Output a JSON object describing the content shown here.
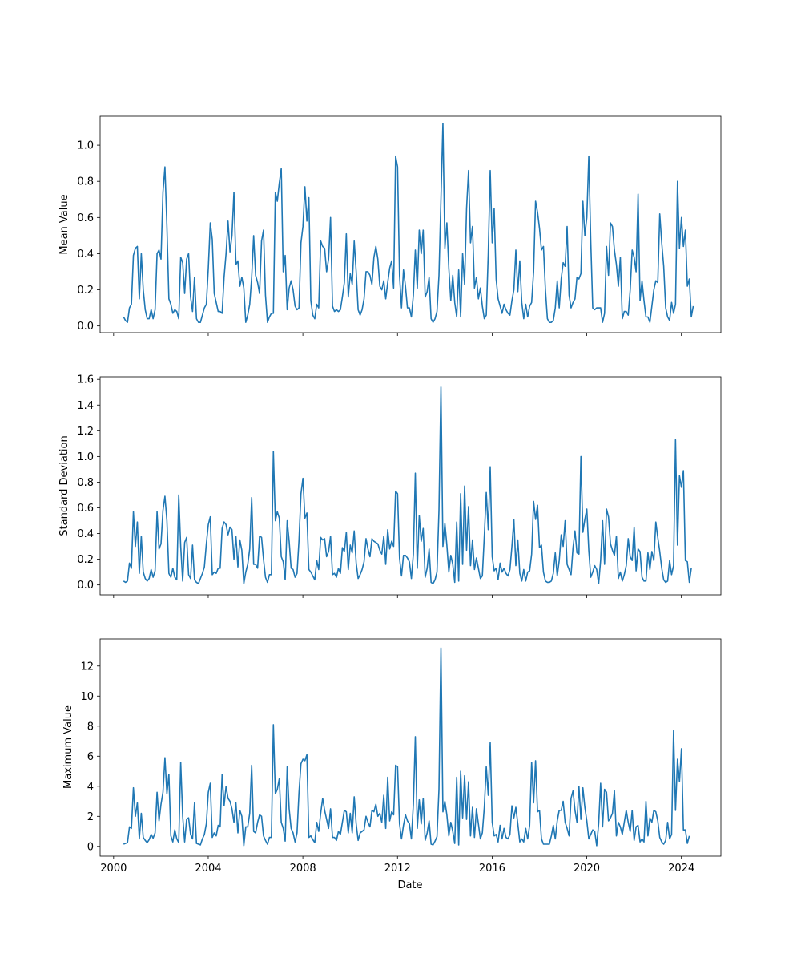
{
  "chart_data": {
    "type": "line",
    "shared_x": true,
    "xlabel": "Date",
    "x_tick_labels": [
      "2000",
      "2004",
      "2008",
      "2012",
      "2016",
      "2020",
      "2024"
    ],
    "x_ticks": [
      2000,
      2004,
      2008,
      2012,
      2016,
      2020,
      2024
    ],
    "xlim": [
      1999.43,
      2025.67
    ],
    "x_start": 2000.42,
    "x_step": 0.08333,
    "line_color": "#1f77b4",
    "panels": [
      {
        "ylabel": "Mean Value",
        "ylim": [
          -0.037,
          1.16
        ],
        "y_ticks": [
          0.0,
          0.2,
          0.4,
          0.6,
          0.8,
          1.0
        ],
        "y_tick_labels": [
          "0.0",
          "0.2",
          "0.4",
          "0.6",
          "0.8",
          "1.0"
        ],
        "values": [
          0.05,
          0.03,
          0.02,
          0.1,
          0.12,
          0.39,
          0.43,
          0.44,
          0.15,
          0.4,
          0.2,
          0.09,
          0.04,
          0.04,
          0.09,
          0.04,
          0.09,
          0.4,
          0.42,
          0.37,
          0.74,
          0.88,
          0.55,
          0.15,
          0.12,
          0.07,
          0.09,
          0.08,
          0.04,
          0.38,
          0.35,
          0.18,
          0.37,
          0.4,
          0.16,
          0.08,
          0.27,
          0.04,
          0.02,
          0.02,
          0.06,
          0.1,
          0.12,
          0.32,
          0.57,
          0.48,
          0.18,
          0.13,
          0.08,
          0.08,
          0.07,
          0.27,
          0.4,
          0.58,
          0.41,
          0.5,
          0.74,
          0.34,
          0.36,
          0.22,
          0.27,
          0.21,
          0.02,
          0.06,
          0.12,
          0.27,
          0.5,
          0.28,
          0.24,
          0.18,
          0.47,
          0.53,
          0.17,
          0.02,
          0.05,
          0.07,
          0.07,
          0.74,
          0.69,
          0.79,
          0.87,
          0.3,
          0.39,
          0.09,
          0.21,
          0.25,
          0.2,
          0.11,
          0.09,
          0.1,
          0.46,
          0.55,
          0.77,
          0.58,
          0.71,
          0.14,
          0.06,
          0.04,
          0.12,
          0.1,
          0.47,
          0.44,
          0.43,
          0.3,
          0.37,
          0.6,
          0.11,
          0.08,
          0.09,
          0.08,
          0.09,
          0.16,
          0.24,
          0.51,
          0.16,
          0.29,
          0.23,
          0.47,
          0.3,
          0.09,
          0.06,
          0.09,
          0.15,
          0.3,
          0.3,
          0.28,
          0.23,
          0.38,
          0.44,
          0.37,
          0.22,
          0.2,
          0.25,
          0.15,
          0.24,
          0.32,
          0.36,
          0.21,
          0.94,
          0.88,
          0.28,
          0.1,
          0.31,
          0.22,
          0.1,
          0.1,
          0.05,
          0.17,
          0.42,
          0.21,
          0.53,
          0.4,
          0.53,
          0.16,
          0.19,
          0.27,
          0.04,
          0.02,
          0.04,
          0.08,
          0.28,
          0.7,
          1.12,
          0.43,
          0.57,
          0.32,
          0.14,
          0.28,
          0.13,
          0.05,
          0.31,
          0.05,
          0.4,
          0.23,
          0.65,
          0.86,
          0.46,
          0.55,
          0.21,
          0.27,
          0.15,
          0.21,
          0.11,
          0.04,
          0.06,
          0.4,
          0.86,
          0.46,
          0.65,
          0.26,
          0.15,
          0.11,
          0.07,
          0.12,
          0.09,
          0.07,
          0.06,
          0.14,
          0.2,
          0.42,
          0.19,
          0.36,
          0.13,
          0.04,
          0.12,
          0.05,
          0.11,
          0.13,
          0.3,
          0.69,
          0.63,
          0.54,
          0.42,
          0.44,
          0.2,
          0.04,
          0.02,
          0.02,
          0.03,
          0.1,
          0.25,
          0.1,
          0.26,
          0.35,
          0.33,
          0.55,
          0.17,
          0.1,
          0.13,
          0.15,
          0.27,
          0.26,
          0.29,
          0.69,
          0.5,
          0.6,
          0.94,
          0.47,
          0.1,
          0.09,
          0.1,
          0.1,
          0.1,
          0.02,
          0.07,
          0.44,
          0.28,
          0.57,
          0.55,
          0.42,
          0.34,
          0.22,
          0.38,
          0.04,
          0.08,
          0.08,
          0.06,
          0.2,
          0.42,
          0.38,
          0.3,
          0.73,
          0.14,
          0.25,
          0.14,
          0.05,
          0.05,
          0.02,
          0.11,
          0.2,
          0.25,
          0.24,
          0.62,
          0.46,
          0.33,
          0.1,
          0.05,
          0.03,
          0.13,
          0.07,
          0.12,
          0.8,
          0.43,
          0.6,
          0.44,
          0.53,
          0.22,
          0.26,
          0.05,
          0.11
        ]
      },
      {
        "ylabel": "Standard Deviation",
        "ylim": [
          -0.077,
          1.62
        ],
        "y_ticks": [
          0.0,
          0.2,
          0.4,
          0.6,
          0.8,
          1.0,
          1.2,
          1.4,
          1.6
        ],
        "y_tick_labels": [
          "0.0",
          "0.2",
          "0.4",
          "0.6",
          "0.8",
          "1.0",
          "1.2",
          "1.4",
          "1.6"
        ],
        "values": [
          0.03,
          0.02,
          0.03,
          0.17,
          0.13,
          0.57,
          0.3,
          0.49,
          0.09,
          0.38,
          0.1,
          0.05,
          0.03,
          0.05,
          0.12,
          0.06,
          0.11,
          0.57,
          0.28,
          0.32,
          0.58,
          0.69,
          0.5,
          0.09,
          0.06,
          0.13,
          0.06,
          0.04,
          0.7,
          0.3,
          0.03,
          0.33,
          0.37,
          0.08,
          0.05,
          0.31,
          0.04,
          0.02,
          0.01,
          0.05,
          0.09,
          0.14,
          0.32,
          0.47,
          0.53,
          0.08,
          0.1,
          0.09,
          0.13,
          0.13,
          0.44,
          0.49,
          0.47,
          0.39,
          0.45,
          0.43,
          0.2,
          0.38,
          0.14,
          0.35,
          0.27,
          0.01,
          0.1,
          0.16,
          0.28,
          0.68,
          0.16,
          0.16,
          0.13,
          0.38,
          0.37,
          0.2,
          0.06,
          0.02,
          0.08,
          0.08,
          1.04,
          0.5,
          0.57,
          0.52,
          0.22,
          0.18,
          0.04,
          0.5,
          0.34,
          0.13,
          0.12,
          0.06,
          0.09,
          0.35,
          0.71,
          0.83,
          0.52,
          0.56,
          0.12,
          0.1,
          0.07,
          0.04,
          0.19,
          0.12,
          0.37,
          0.35,
          0.36,
          0.22,
          0.26,
          0.38,
          0.08,
          0.09,
          0.06,
          0.13,
          0.09,
          0.29,
          0.26,
          0.41,
          0.12,
          0.31,
          0.25,
          0.42,
          0.17,
          0.05,
          0.08,
          0.12,
          0.18,
          0.36,
          0.28,
          0.22,
          0.36,
          0.34,
          0.33,
          0.32,
          0.27,
          0.24,
          0.38,
          0.16,
          0.43,
          0.28,
          0.34,
          0.3,
          0.73,
          0.71,
          0.21,
          0.07,
          0.23,
          0.23,
          0.21,
          0.18,
          0.05,
          0.24,
          0.87,
          0.13,
          0.54,
          0.34,
          0.44,
          0.06,
          0.13,
          0.28,
          0.02,
          0.01,
          0.04,
          0.1,
          0.58,
          1.54,
          0.3,
          0.48,
          0.31,
          0.1,
          0.23,
          0.16,
          0.02,
          0.49,
          0.03,
          0.71,
          0.16,
          0.77,
          0.27,
          0.61,
          0.15,
          0.35,
          0.12,
          0.21,
          0.13,
          0.05,
          0.07,
          0.38,
          0.72,
          0.43,
          0.92,
          0.22,
          0.11,
          0.13,
          0.04,
          0.17,
          0.1,
          0.13,
          0.09,
          0.07,
          0.12,
          0.3,
          0.51,
          0.15,
          0.35,
          0.09,
          0.03,
          0.12,
          0.03,
          0.1,
          0.11,
          0.24,
          0.65,
          0.51,
          0.62,
          0.29,
          0.31,
          0.1,
          0.03,
          0.02,
          0.02,
          0.03,
          0.09,
          0.25,
          0.07,
          0.19,
          0.39,
          0.3,
          0.5,
          0.16,
          0.12,
          0.08,
          0.29,
          0.42,
          0.25,
          0.24,
          1.0,
          0.41,
          0.51,
          0.59,
          0.27,
          0.06,
          0.1,
          0.15,
          0.12,
          0.01,
          0.19,
          0.5,
          0.16,
          0.59,
          0.53,
          0.32,
          0.27,
          0.23,
          0.38,
          0.05,
          0.1,
          0.03,
          0.08,
          0.15,
          0.36,
          0.22,
          0.19,
          0.45,
          0.11,
          0.28,
          0.26,
          0.06,
          0.03,
          0.03,
          0.25,
          0.12,
          0.26,
          0.19,
          0.49,
          0.37,
          0.26,
          0.13,
          0.04,
          0.02,
          0.03,
          0.19,
          0.08,
          0.15,
          1.13,
          0.31,
          0.85,
          0.76,
          0.89,
          0.19,
          0.18,
          0.02,
          0.13
        ]
      },
      {
        "ylabel": "Maximum Value",
        "ylim": [
          -0.65,
          13.8
        ],
        "y_ticks": [
          0,
          2,
          4,
          6,
          8,
          10,
          12
        ],
        "y_tick_labels": [
          "0",
          "2",
          "4",
          "6",
          "8",
          "10",
          "12"
        ],
        "values": [
          0.15,
          0.2,
          0.25,
          1.3,
          1.2,
          3.9,
          2.0,
          2.9,
          0.5,
          2.2,
          0.6,
          0.4,
          0.25,
          0.45,
          0.8,
          0.55,
          0.9,
          3.6,
          1.7,
          2.8,
          3.6,
          5.9,
          3.5,
          4.8,
          0.7,
          0.3,
          1.1,
          0.5,
          0.25,
          5.6,
          2.0,
          0.3,
          1.8,
          1.9,
          0.8,
          0.5,
          2.9,
          0.2,
          0.15,
          0.1,
          0.5,
          0.8,
          1.5,
          3.6,
          4.2,
          0.6,
          0.9,
          0.7,
          1.4,
          1.3,
          4.8,
          2.7,
          4.0,
          3.2,
          3.0,
          2.5,
          1.6,
          2.9,
          0.9,
          2.4,
          2.0,
          0.05,
          1.3,
          1.3,
          2.2,
          5.4,
          1.0,
          0.9,
          1.6,
          2.1,
          2.0,
          0.7,
          0.4,
          0.15,
          0.6,
          0.6,
          8.1,
          3.5,
          3.8,
          4.5,
          1.6,
          1.2,
          0.35,
          5.3,
          2.5,
          1.2,
          0.9,
          0.3,
          0.9,
          3.6,
          5.5,
          5.8,
          5.7,
          6.1,
          0.6,
          0.7,
          0.45,
          0.25,
          1.6,
          1.0,
          2.2,
          3.2,
          2.4,
          1.8,
          1.2,
          2.5,
          0.6,
          0.6,
          0.4,
          1.0,
          0.8,
          1.6,
          2.4,
          2.3,
          0.9,
          2.2,
          0.9,
          3.3,
          1.5,
          0.4,
          0.9,
          1.0,
          1.1,
          2.0,
          1.6,
          1.3,
          2.4,
          2.3,
          2.8,
          2.0,
          2.2,
          1.6,
          3.4,
          1.2,
          4.6,
          1.7,
          2.3,
          2.1,
          5.4,
          5.3,
          1.5,
          0.5,
          1.4,
          2.1,
          1.7,
          1.5,
          0.5,
          2.8,
          7.3,
          1.2,
          3.1,
          1.5,
          3.2,
          0.4,
          0.9,
          1.7,
          0.15,
          0.1,
          0.35,
          0.65,
          3.8,
          13.2,
          2.3,
          3.0,
          2.1,
          0.7,
          1.6,
          1.0,
          0.2,
          4.6,
          0.1,
          5.0,
          1.9,
          4.7,
          1.8,
          4.3,
          0.7,
          2.6,
          0.6,
          2.5,
          1.5,
          0.5,
          0.9,
          2.6,
          5.3,
          3.4,
          6.9,
          1.6,
          0.7,
          0.8,
          0.3,
          1.4,
          0.5,
          1.2,
          0.6,
          0.5,
          0.8,
          2.7,
          1.9,
          2.6,
          1.5,
          0.3,
          0.5,
          0.3,
          1.2,
          0.5,
          1.4,
          5.6,
          2.9,
          5.7,
          2.3,
          2.4,
          0.5,
          0.15,
          0.15,
          0.15,
          0.15,
          0.7,
          1.4,
          0.5,
          1.7,
          2.4,
          2.4,
          3.0,
          1.6,
          1.2,
          0.7,
          3.2,
          3.7,
          2.4,
          1.6,
          4.0,
          1.8,
          3.9,
          2.6,
          1.7,
          0.5,
          0.8,
          1.1,
          1.0,
          0.05,
          1.5,
          4.2,
          1.3,
          3.8,
          3.6,
          1.7,
          1.9,
          2.2,
          3.7,
          0.7,
          1.6,
          1.3,
          0.8,
          1.6,
          2.4,
          1.6,
          1.0,
          2.4,
          0.4,
          1.3,
          1.4,
          0.3,
          0.5,
          0.3,
          3.0,
          0.7,
          1.9,
          1.6,
          2.4,
          2.3,
          1.7,
          0.6,
          0.3,
          0.15,
          0.4,
          1.6,
          0.5,
          0.8,
          7.7,
          2.4,
          5.8,
          4.3,
          6.5,
          1.1,
          1.1,
          0.2,
          0.7
        ]
      }
    ]
  }
}
